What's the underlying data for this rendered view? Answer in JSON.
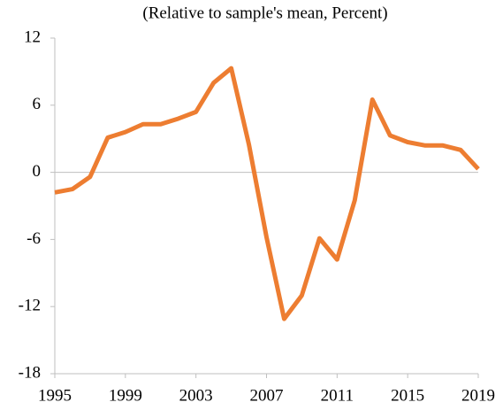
{
  "chart_data": {
    "type": "line",
    "title": "(Relative to sample's mean, Percent)",
    "x": [
      1995,
      1996,
      1997,
      1998,
      1999,
      2000,
      2001,
      2002,
      2003,
      2004,
      2005,
      2006,
      2007,
      2008,
      2009,
      2010,
      2011,
      2012,
      2013,
      2014,
      2015,
      2016,
      2017,
      2018,
      2019
    ],
    "series": [
      {
        "color": "#ed7d31",
        "values": [
          -1.8,
          -1.5,
          -0.4,
          3.1,
          3.6,
          4.3,
          4.3,
          4.8,
          5.4,
          8.0,
          9.3,
          2.5,
          -5.8,
          -13.1,
          -11.0,
          -5.9,
          -7.8,
          -2.5,
          6.5,
          3.3,
          2.7,
          2.4,
          2.4,
          2.0,
          0.3
        ]
      }
    ],
    "xlim": [
      1995,
      2019
    ],
    "xticks": [
      1995,
      1999,
      2003,
      2007,
      2011,
      2015,
      2019
    ],
    "ylim": [
      -18,
      12
    ],
    "yticks": [
      -18,
      -12,
      -6,
      0,
      6,
      12
    ]
  }
}
